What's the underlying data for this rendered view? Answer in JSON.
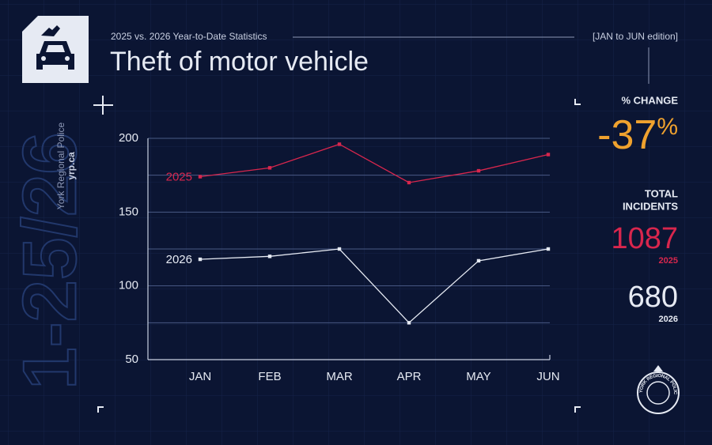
{
  "header": {
    "subtitle": "2025 vs. 2026 Year-to-Date Statistics",
    "edition": "[JAN to JUN edition]",
    "title": "Theft of motor vehicle"
  },
  "branding": {
    "organization": "York Regional Police",
    "website": "yrp.ca",
    "watermark": "1-25/26",
    "badge_text": "YORK REGIONAL POLICE"
  },
  "chart_data": {
    "type": "line",
    "categories": [
      "JAN",
      "FEB",
      "MAR",
      "APR",
      "MAY",
      "JUN"
    ],
    "series": [
      {
        "name": "2025",
        "color": "#d8264d",
        "values": [
          174,
          180,
          196,
          170,
          178,
          189
        ]
      },
      {
        "name": "2026",
        "color": "#e6eaf3",
        "values": [
          118,
          120,
          125,
          75,
          117,
          125
        ]
      }
    ],
    "ylim": [
      50,
      200
    ],
    "yticks": [
      50,
      100,
      150,
      200
    ],
    "minor_gridlines": [
      75,
      125,
      175
    ],
    "grid": true
  },
  "stats": {
    "percent_change_label": "% CHANGE",
    "percent_change": -37,
    "percent_sign": "%",
    "percent_change_color": "#f0a22e",
    "totals_label": [
      "TOTAL",
      "INCIDENTS"
    ],
    "totals": [
      1087,
      680
    ]
  }
}
